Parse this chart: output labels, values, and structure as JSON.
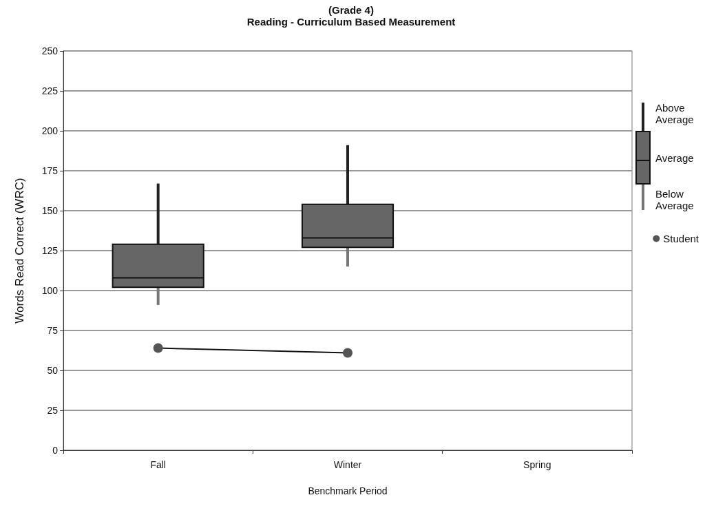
{
  "chart_data": {
    "type": "box",
    "title": "(Grade 4)",
    "subtitle": "Reading - Curriculum Based Measurement",
    "xlabel": "Benchmark Period",
    "ylabel": "Words Read Correct (WRC)",
    "categories": [
      "Fall",
      "Winter",
      "Spring"
    ],
    "boxes": [
      {
        "low": 91,
        "q1": 102,
        "median": 108,
        "q3": 129,
        "high": 167
      },
      {
        "low": 115,
        "q1": 127,
        "median": 133,
        "q3": 154,
        "high": 191
      },
      null
    ],
    "color": "#666666",
    "series": [
      {
        "name": "Student",
        "type": "line",
        "color": "#555555",
        "x": [
          "Fall",
          "Winter"
        ],
        "values": [
          64,
          61
        ]
      }
    ],
    "annotations": [
      "Above Average",
      "Average",
      "Below Average"
    ],
    "ylim": [
      0,
      250
    ],
    "yticks": [
      0,
      25,
      50,
      75,
      100,
      125,
      150,
      175,
      200,
      225,
      250
    ],
    "grid": "y",
    "legend": "right",
    "marker": "circle"
  }
}
